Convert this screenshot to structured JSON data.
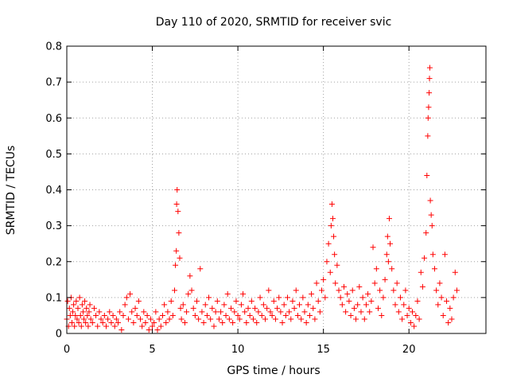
{
  "chart_data": {
    "type": "scatter",
    "title": "Day 110 of 2020, SRMTID for receiver svic",
    "xlabel": "GPS time / hours",
    "ylabel": "SRMTID / TECUs",
    "xlim": [
      0,
      24.5
    ],
    "ylim": [
      0,
      0.8
    ],
    "grid": true,
    "marker": "+",
    "series_color": "#ff0000",
    "x_ticks": [
      0,
      5,
      10,
      15,
      20
    ],
    "x_tick_labels": [
      "0",
      "5",
      "10",
      "15",
      "20"
    ],
    "y_ticks": [
      0,
      0.1,
      0.2,
      0.3,
      0.4,
      0.5,
      0.6,
      0.7,
      0.8
    ],
    "y_tick_labels": [
      "0",
      "0.1",
      "0.2",
      "0.3",
      "0.4",
      "0.5",
      "0.6",
      "0.7",
      "0.8"
    ],
    "points": [
      [
        0.0,
        0.04
      ],
      [
        0.05,
        0.09
      ],
      [
        0.1,
        0.02
      ],
      [
        0.15,
        0.07
      ],
      [
        0.2,
        0.05
      ],
      [
        0.25,
        0.1
      ],
      [
        0.3,
        0.03
      ],
      [
        0.35,
        0.06
      ],
      [
        0.4,
        0.08
      ],
      [
        0.45,
        0.02
      ],
      [
        0.5,
        0.05
      ],
      [
        0.55,
        0.09
      ],
      [
        0.6,
        0.04
      ],
      [
        0.65,
        0.07
      ],
      [
        0.7,
        0.03
      ],
      [
        0.75,
        0.1
      ],
      [
        0.8,
        0.05
      ],
      [
        0.85,
        0.02
      ],
      [
        0.9,
        0.08
      ],
      [
        0.95,
        0.06
      ],
      [
        1.0,
        0.04
      ],
      [
        1.05,
        0.09
      ],
      [
        1.1,
        0.03
      ],
      [
        1.15,
        0.07
      ],
      [
        1.2,
        0.05
      ],
      [
        1.25,
        0.02
      ],
      [
        1.3,
        0.06
      ],
      [
        1.35,
        0.08
      ],
      [
        1.4,
        0.04
      ],
      [
        1.5,
        0.03
      ],
      [
        1.6,
        0.07
      ],
      [
        1.7,
        0.05
      ],
      [
        1.8,
        0.02
      ],
      [
        1.9,
        0.06
      ],
      [
        2.0,
        0.04
      ],
      [
        2.1,
        0.03
      ],
      [
        2.2,
        0.05
      ],
      [
        2.3,
        0.02
      ],
      [
        2.4,
        0.04
      ],
      [
        2.5,
        0.06
      ],
      [
        2.6,
        0.03
      ],
      [
        2.7,
        0.05
      ],
      [
        2.8,
        0.02
      ],
      [
        2.9,
        0.04
      ],
      [
        3.0,
        0.03
      ],
      [
        3.1,
        0.06
      ],
      [
        3.2,
        0.01
      ],
      [
        3.3,
        0.05
      ],
      [
        3.4,
        0.08
      ],
      [
        3.5,
        0.1
      ],
      [
        3.6,
        0.04
      ],
      [
        3.7,
        0.11
      ],
      [
        3.8,
        0.06
      ],
      [
        3.9,
        0.03
      ],
      [
        4.0,
        0.07
      ],
      [
        4.1,
        0.05
      ],
      [
        4.2,
        0.09
      ],
      [
        4.3,
        0.04
      ],
      [
        4.4,
        0.02
      ],
      [
        4.5,
        0.06
      ],
      [
        4.6,
        0.03
      ],
      [
        4.7,
        0.05
      ],
      [
        4.8,
        0.01
      ],
      [
        4.9,
        0.04
      ],
      [
        5.0,
        0.02
      ],
      [
        5.1,
        0.03
      ],
      [
        5.2,
        0.06
      ],
      [
        5.3,
        0.01
      ],
      [
        5.4,
        0.04
      ],
      [
        5.5,
        0.02
      ],
      [
        5.6,
        0.05
      ],
      [
        5.7,
        0.08
      ],
      [
        5.8,
        0.03
      ],
      [
        5.9,
        0.06
      ],
      [
        6.0,
        0.04
      ],
      [
        6.1,
        0.09
      ],
      [
        6.2,
        0.05
      ],
      [
        6.3,
        0.12
      ],
      [
        6.35,
        0.19
      ],
      [
        6.4,
        0.23
      ],
      [
        6.42,
        0.36
      ],
      [
        6.45,
        0.4
      ],
      [
        6.5,
        0.34
      ],
      [
        6.55,
        0.28
      ],
      [
        6.6,
        0.21
      ],
      [
        6.65,
        0.07
      ],
      [
        6.7,
        0.04
      ],
      [
        6.8,
        0.08
      ],
      [
        6.9,
        0.03
      ],
      [
        7.0,
        0.06
      ],
      [
        7.1,
        0.11
      ],
      [
        7.2,
        0.16
      ],
      [
        7.3,
        0.12
      ],
      [
        7.4,
        0.07
      ],
      [
        7.5,
        0.05
      ],
      [
        7.6,
        0.09
      ],
      [
        7.7,
        0.04
      ],
      [
        7.8,
        0.18
      ],
      [
        7.9,
        0.06
      ],
      [
        8.0,
        0.03
      ],
      [
        8.1,
        0.08
      ],
      [
        8.2,
        0.05
      ],
      [
        8.3,
        0.1
      ],
      [
        8.4,
        0.04
      ],
      [
        8.5,
        0.07
      ],
      [
        8.6,
        0.02
      ],
      [
        8.7,
        0.06
      ],
      [
        8.8,
        0.09
      ],
      [
        8.9,
        0.04
      ],
      [
        9.0,
        0.06
      ],
      [
        9.1,
        0.03
      ],
      [
        9.2,
        0.08
      ],
      [
        9.3,
        0.05
      ],
      [
        9.4,
        0.11
      ],
      [
        9.5,
        0.04
      ],
      [
        9.6,
        0.07
      ],
      [
        9.7,
        0.03
      ],
      [
        9.8,
        0.06
      ],
      [
        9.9,
        0.09
      ],
      [
        10.0,
        0.05
      ],
      [
        10.1,
        0.04
      ],
      [
        10.2,
        0.08
      ],
      [
        10.3,
        0.11
      ],
      [
        10.4,
        0.06
      ],
      [
        10.5,
        0.03
      ],
      [
        10.6,
        0.07
      ],
      [
        10.7,
        0.05
      ],
      [
        10.8,
        0.09
      ],
      [
        10.9,
        0.04
      ],
      [
        11.0,
        0.07
      ],
      [
        11.1,
        0.03
      ],
      [
        11.2,
        0.06
      ],
      [
        11.3,
        0.1
      ],
      [
        11.4,
        0.05
      ],
      [
        11.5,
        0.08
      ],
      [
        11.6,
        0.04
      ],
      [
        11.7,
        0.07
      ],
      [
        11.8,
        0.12
      ],
      [
        11.9,
        0.06
      ],
      [
        12.0,
        0.05
      ],
      [
        12.1,
        0.09
      ],
      [
        12.2,
        0.04
      ],
      [
        12.3,
        0.07
      ],
      [
        12.4,
        0.1
      ],
      [
        12.5,
        0.06
      ],
      [
        12.6,
        0.03
      ],
      [
        12.7,
        0.08
      ],
      [
        12.8,
        0.05
      ],
      [
        12.9,
        0.1
      ],
      [
        13.0,
        0.06
      ],
      [
        13.1,
        0.04
      ],
      [
        13.2,
        0.09
      ],
      [
        13.3,
        0.07
      ],
      [
        13.4,
        0.12
      ],
      [
        13.5,
        0.05
      ],
      [
        13.6,
        0.08
      ],
      [
        13.7,
        0.04
      ],
      [
        13.8,
        0.1
      ],
      [
        13.9,
        0.06
      ],
      [
        14.0,
        0.03
      ],
      [
        14.1,
        0.08
      ],
      [
        14.2,
        0.05
      ],
      [
        14.3,
        0.11
      ],
      [
        14.4,
        0.07
      ],
      [
        14.5,
        0.04
      ],
      [
        14.6,
        0.14
      ],
      [
        14.7,
        0.09
      ],
      [
        14.8,
        0.06
      ],
      [
        14.9,
        0.12
      ],
      [
        15.0,
        0.15
      ],
      [
        15.1,
        0.1
      ],
      [
        15.2,
        0.2
      ],
      [
        15.3,
        0.25
      ],
      [
        15.4,
        0.17
      ],
      [
        15.45,
        0.3
      ],
      [
        15.5,
        0.36
      ],
      [
        15.55,
        0.32
      ],
      [
        15.6,
        0.27
      ],
      [
        15.65,
        0.22
      ],
      [
        15.7,
        0.14
      ],
      [
        15.8,
        0.19
      ],
      [
        15.9,
        0.12
      ],
      [
        16.0,
        0.1
      ],
      [
        16.1,
        0.08
      ],
      [
        16.2,
        0.13
      ],
      [
        16.3,
        0.06
      ],
      [
        16.4,
        0.11
      ],
      [
        16.5,
        0.09
      ],
      [
        16.6,
        0.05
      ],
      [
        16.7,
        0.12
      ],
      [
        16.8,
        0.07
      ],
      [
        16.9,
        0.04
      ],
      [
        17.0,
        0.08
      ],
      [
        17.1,
        0.13
      ],
      [
        17.2,
        0.06
      ],
      [
        17.3,
        0.1
      ],
      [
        17.4,
        0.04
      ],
      [
        17.5,
        0.08
      ],
      [
        17.6,
        0.11
      ],
      [
        17.7,
        0.06
      ],
      [
        17.8,
        0.09
      ],
      [
        17.9,
        0.24
      ],
      [
        18.0,
        0.14
      ],
      [
        18.1,
        0.18
      ],
      [
        18.2,
        0.07
      ],
      [
        18.3,
        0.12
      ],
      [
        18.4,
        0.05
      ],
      [
        18.5,
        0.1
      ],
      [
        18.6,
        0.15
      ],
      [
        18.7,
        0.22
      ],
      [
        18.75,
        0.27
      ],
      [
        18.8,
        0.2
      ],
      [
        18.85,
        0.32
      ],
      [
        18.9,
        0.25
      ],
      [
        19.0,
        0.18
      ],
      [
        19.1,
        0.12
      ],
      [
        19.2,
        0.08
      ],
      [
        19.3,
        0.14
      ],
      [
        19.4,
        0.06
      ],
      [
        19.5,
        0.1
      ],
      [
        19.6,
        0.04
      ],
      [
        19.7,
        0.08
      ],
      [
        19.8,
        0.12
      ],
      [
        19.9,
        0.05
      ],
      [
        20.0,
        0.07
      ],
      [
        20.1,
        0.03
      ],
      [
        20.2,
        0.06
      ],
      [
        20.3,
        0.02
      ],
      [
        20.4,
        0.05
      ],
      [
        20.5,
        0.09
      ],
      [
        20.6,
        0.04
      ],
      [
        20.7,
        0.17
      ],
      [
        20.8,
        0.13
      ],
      [
        20.9,
        0.21
      ],
      [
        21.0,
        0.28
      ],
      [
        21.05,
        0.44
      ],
      [
        21.1,
        0.55
      ],
      [
        21.12,
        0.6
      ],
      [
        21.15,
        0.63
      ],
      [
        21.18,
        0.67
      ],
      [
        21.2,
        0.71
      ],
      [
        21.22,
        0.74
      ],
      [
        21.25,
        0.37
      ],
      [
        21.3,
        0.33
      ],
      [
        21.35,
        0.3
      ],
      [
        21.4,
        0.22
      ],
      [
        21.5,
        0.18
      ],
      [
        21.6,
        0.12
      ],
      [
        21.7,
        0.08
      ],
      [
        21.8,
        0.14
      ],
      [
        21.9,
        0.1
      ],
      [
        22.0,
        0.05
      ],
      [
        22.1,
        0.22
      ],
      [
        22.2,
        0.09
      ],
      [
        22.3,
        0.03
      ],
      [
        22.4,
        0.07
      ],
      [
        22.5,
        0.04
      ],
      [
        22.6,
        0.1
      ],
      [
        22.7,
        0.17
      ],
      [
        22.8,
        0.12
      ]
    ]
  }
}
